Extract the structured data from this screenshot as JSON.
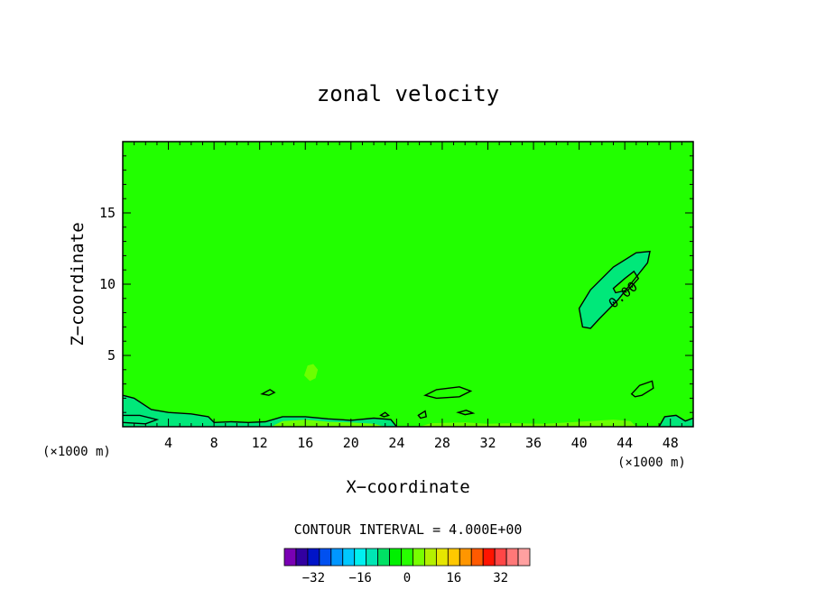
{
  "chart_data": {
    "type": "heatmap",
    "title": "zonal velocity",
    "xlabel": "X−coordinate",
    "ylabel": "Z−coordinate",
    "x_unit_label": "(×1000 m)",
    "y_unit_label": "(×1000 m)",
    "xlim": [
      0,
      50
    ],
    "ylim": [
      0,
      20
    ],
    "x_ticks": [
      4,
      8,
      12,
      16,
      20,
      24,
      28,
      32,
      36,
      40,
      44,
      48
    ],
    "x_tick_labels": [
      "4",
      "8",
      "12",
      "16",
      "20",
      "24",
      "28",
      "32",
      "36",
      "40",
      "44",
      "48"
    ],
    "y_ticks": [
      5,
      10,
      15
    ],
    "y_tick_labels": [
      "5",
      "10",
      "15"
    ],
    "contour_interval_label": "CONTOUR INTERVAL = 4.000E+00",
    "contour_interval": 4,
    "contour_label": "0.00",
    "colorbar": {
      "colors": [
        "#7a00b4",
        "#3200a0",
        "#0014c8",
        "#0050f0",
        "#0096ff",
        "#00c8ff",
        "#00f0f0",
        "#00e6b4",
        "#00e164",
        "#00f000",
        "#28ff00",
        "#78ff00",
        "#b4f000",
        "#e6e600",
        "#ffc800",
        "#ff9600",
        "#ff5a00",
        "#ff1400",
        "#ff4646",
        "#ff7878",
        "#ffa0a0"
      ],
      "tick_values": [
        -32,
        -16,
        0,
        16,
        32
      ],
      "tick_labels": [
        "−32",
        "−16",
        "0",
        "16",
        "32"
      ],
      "min": -42,
      "max": 42
    },
    "background_value_color": "#22ff00",
    "regions": [
      {
        "name": "jet-maximum-zone",
        "fill": "#00e87a",
        "points": [
          [
            40.0,
            8.3
          ],
          [
            41.0,
            9.6
          ],
          [
            43.0,
            11.2
          ],
          [
            45.0,
            12.2
          ],
          [
            46.2,
            12.3
          ],
          [
            46.0,
            11.5
          ],
          [
            45.1,
            10.6
          ],
          [
            43.4,
            8.9
          ],
          [
            41.8,
            7.6
          ],
          [
            41.0,
            6.9
          ],
          [
            40.3,
            7.0
          ]
        ]
      },
      {
        "name": "jet-inner-ring",
        "fill": "#22ff00",
        "points": [
          [
            43.0,
            9.7
          ],
          [
            44.0,
            10.4
          ],
          [
            44.8,
            10.9
          ],
          [
            45.2,
            10.4
          ],
          [
            44.3,
            9.6
          ],
          [
            43.2,
            9.4
          ]
        ]
      },
      {
        "name": "surface-band",
        "fill": "#00e87a",
        "points": [
          [
            0.0,
            0.0
          ],
          [
            0.0,
            2.2
          ],
          [
            1.0,
            2.0
          ],
          [
            2.5,
            1.2
          ],
          [
            4.0,
            1.0
          ],
          [
            6.0,
            0.9
          ],
          [
            7.5,
            0.7
          ],
          [
            8.0,
            0.3
          ],
          [
            9.5,
            0.35
          ],
          [
            11.0,
            0.3
          ],
          [
            12.5,
            0.35
          ],
          [
            14.0,
            0.7
          ],
          [
            16.0,
            0.7
          ],
          [
            18.0,
            0.55
          ],
          [
            20.0,
            0.45
          ],
          [
            22.0,
            0.6
          ],
          [
            23.5,
            0.5
          ],
          [
            24.0,
            0.0
          ]
        ]
      },
      {
        "name": "right-surface-patch",
        "fill": "#00e87a",
        "points": [
          [
            47.0,
            0.0
          ],
          [
            47.5,
            0.7
          ],
          [
            48.5,
            0.8
          ],
          [
            49.3,
            0.4
          ],
          [
            50.0,
            0.6
          ],
          [
            50.0,
            0.0
          ]
        ]
      },
      {
        "name": "left-rise-patch",
        "fill": "#00e87a",
        "points": [
          [
            0.0,
            0.8
          ],
          [
            1.5,
            0.8
          ],
          [
            3.0,
            0.5
          ],
          [
            2.0,
            0.2
          ],
          [
            0.0,
            0.3
          ]
        ]
      },
      {
        "name": "weak-positive-spot",
        "fill": "#6cff00",
        "points": [
          [
            15.9,
            3.6
          ],
          [
            16.2,
            4.3
          ],
          [
            16.7,
            4.4
          ],
          [
            17.1,
            4.0
          ],
          [
            16.9,
            3.4
          ],
          [
            16.4,
            3.2
          ]
        ]
      },
      {
        "name": "weak-positive-surface-1",
        "fill": "#6cff00",
        "points": [
          [
            26.0,
            0.0
          ],
          [
            27.0,
            0.25
          ],
          [
            30.0,
            0.3
          ],
          [
            32.0,
            0.2
          ],
          [
            34.0,
            0.25
          ],
          [
            37.0,
            0.2
          ],
          [
            40.0,
            0.35
          ],
          [
            43.0,
            0.5
          ],
          [
            44.5,
            0.4
          ],
          [
            45.0,
            0.0
          ]
        ]
      },
      {
        "name": "weak-positive-surface-2",
        "fill": "#6cff00",
        "points": [
          [
            13.0,
            0.0
          ],
          [
            14.0,
            0.4
          ],
          [
            16.0,
            0.5
          ],
          [
            18.0,
            0.35
          ],
          [
            20.0,
            0.3
          ],
          [
            22.0,
            0.2
          ],
          [
            23.0,
            0.0
          ]
        ]
      }
    ],
    "contours": [
      {
        "name": "contour-jet-outer",
        "closed": true,
        "points": [
          [
            40.0,
            8.3
          ],
          [
            41.0,
            9.6
          ],
          [
            43.0,
            11.2
          ],
          [
            45.0,
            12.2
          ],
          [
            46.2,
            12.3
          ],
          [
            46.0,
            11.5
          ],
          [
            45.1,
            10.6
          ],
          [
            43.4,
            8.9
          ],
          [
            41.8,
            7.6
          ],
          [
            41.0,
            6.9
          ],
          [
            40.3,
            7.0
          ]
        ]
      },
      {
        "name": "contour-jet-inner",
        "closed": true,
        "points": [
          [
            43.0,
            9.7
          ],
          [
            44.0,
            10.4
          ],
          [
            44.8,
            10.9
          ],
          [
            45.2,
            10.4
          ],
          [
            44.3,
            9.6
          ],
          [
            43.2,
            9.4
          ]
        ]
      },
      {
        "name": "contour-surface-left",
        "closed": false,
        "points": [
          [
            0.0,
            2.2
          ],
          [
            1.0,
            2.0
          ],
          [
            2.5,
            1.2
          ],
          [
            4.0,
            1.0
          ],
          [
            6.0,
            0.9
          ],
          [
            7.5,
            0.7
          ],
          [
            8.0,
            0.3
          ],
          [
            9.5,
            0.35
          ],
          [
            11.0,
            0.3
          ],
          [
            12.5,
            0.35
          ],
          [
            14.0,
            0.7
          ],
          [
            16.0,
            0.7
          ],
          [
            18.0,
            0.55
          ],
          [
            20.0,
            0.45
          ],
          [
            22.0,
            0.6
          ],
          [
            23.5,
            0.5
          ],
          [
            24.0,
            0.0
          ]
        ]
      },
      {
        "name": "contour-surface-left-low",
        "closed": false,
        "points": [
          [
            0.0,
            0.8
          ],
          [
            1.5,
            0.8
          ],
          [
            3.0,
            0.5
          ],
          [
            2.0,
            0.2
          ],
          [
            0.0,
            0.3
          ]
        ]
      },
      {
        "name": "contour-patch-28",
        "closed": true,
        "points": [
          [
            26.5,
            2.2
          ],
          [
            27.5,
            2.6
          ],
          [
            29.5,
            2.8
          ],
          [
            30.5,
            2.5
          ],
          [
            29.5,
            2.1
          ],
          [
            27.5,
            2.0
          ]
        ]
      },
      {
        "name": "contour-patch-45",
        "closed": true,
        "points": [
          [
            44.6,
            2.3
          ],
          [
            45.3,
            2.9
          ],
          [
            46.4,
            3.2
          ],
          [
            46.5,
            2.7
          ],
          [
            45.5,
            2.2
          ],
          [
            44.9,
            2.1
          ]
        ]
      },
      {
        "name": "contour-patch-13",
        "closed": true,
        "points": [
          [
            12.2,
            2.3
          ],
          [
            12.9,
            2.6
          ],
          [
            13.3,
            2.4
          ],
          [
            12.8,
            2.2
          ]
        ]
      },
      {
        "name": "contour-patch-26",
        "closed": true,
        "points": [
          [
            25.9,
            0.8
          ],
          [
            26.5,
            1.1
          ],
          [
            26.6,
            0.7
          ],
          [
            26.1,
            0.6
          ]
        ]
      },
      {
        "name": "contour-patch-30",
        "closed": true,
        "points": [
          [
            29.4,
            1.0
          ],
          [
            30.1,
            1.15
          ],
          [
            30.7,
            0.95
          ],
          [
            30.0,
            0.85
          ]
        ]
      },
      {
        "name": "contour-surface-right",
        "closed": false,
        "points": [
          [
            47.0,
            0.0
          ],
          [
            47.5,
            0.7
          ],
          [
            48.5,
            0.8
          ],
          [
            49.3,
            0.4
          ],
          [
            50.0,
            0.6
          ]
        ]
      },
      {
        "name": "contour-patch-23",
        "closed": true,
        "points": [
          [
            22.6,
            0.8
          ],
          [
            23.0,
            1.0
          ],
          [
            23.3,
            0.8
          ],
          [
            22.9,
            0.7
          ]
        ]
      }
    ]
  }
}
